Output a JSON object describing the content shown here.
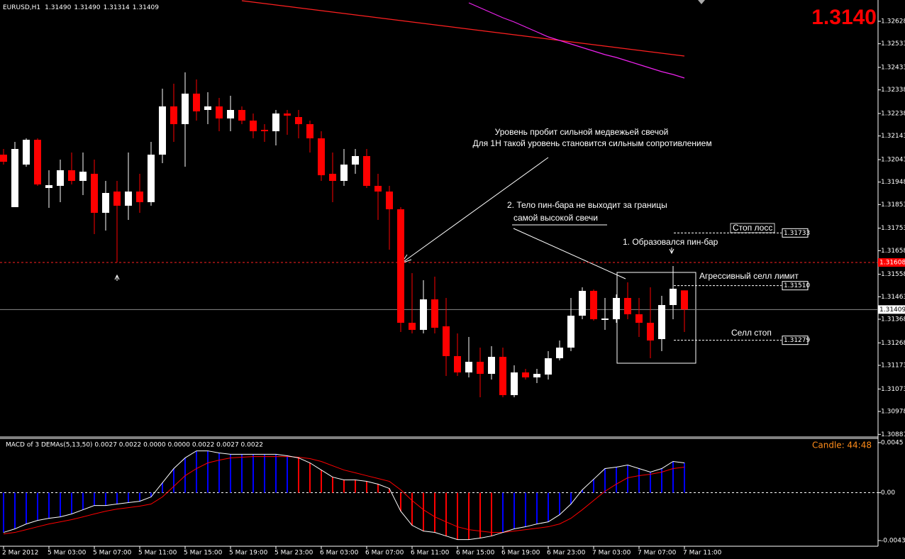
{
  "chart_data": [
    {
      "type": "candlestick",
      "symbol": "EURUSD,H1",
      "header_values": [
        "1.31490",
        "1.31490",
        "1.31314",
        "1.31409"
      ],
      "bid_display": "1.3140",
      "categories": [
        "2 Mar 2012",
        null,
        null,
        null,
        "5 Mar 03:00",
        null,
        null,
        null,
        "5 Mar 07:00",
        null,
        null,
        null,
        "5 Mar 11:00",
        null,
        null,
        null,
        "5 Mar 15:00",
        null,
        null,
        null,
        "5 Mar 19:00",
        null,
        null,
        null,
        "5 Mar 23:00",
        null,
        null,
        null,
        "6 Mar 03:00",
        null,
        null,
        null,
        "6 Mar 07:00",
        null,
        null,
        null,
        "6 Mar 11:00",
        null,
        null,
        null,
        "6 Mar 15:00",
        null,
        null,
        null,
        "6 Mar 19:00",
        null,
        null,
        null,
        "6 Mar 23:00",
        null,
        null,
        null,
        "7 Mar 03:00",
        null,
        null,
        null,
        "7 Mar 07:00",
        null,
        null,
        null,
        "7 Mar 11:00"
      ],
      "open": [
        1.32064,
        1.31842,
        1.32022,
        1.32127,
        1.31923,
        1.31932,
        1.31998,
        1.31953,
        1.31983,
        1.31818,
        1.31908,
        1.31848,
        1.31908,
        1.31863,
        1.32064,
        1.32268,
        1.32193,
        1.32322,
        1.32253,
        1.32268,
        1.32217,
        1.32253,
        1.32208,
        1.32169,
        1.32163,
        1.32238,
        1.32223,
        1.32193,
        1.32133,
        1.31983,
        1.31953,
        1.32022,
        1.32058,
        1.31932,
        1.31908,
        1.31833,
        1.31353,
        1.31323,
        1.31452,
        1.31338,
        1.31212,
        1.31143,
        1.31188,
        1.31137,
        1.31209,
        1.31047,
        1.31143,
        1.31122,
        1.31134,
        1.31203,
        1.31248,
        1.31383,
        1.31488,
        1.31365,
        1.31368,
        1.31458,
        1.31389,
        1.31353,
        1.31284,
        1.31428,
        1.3149
      ],
      "high": [
        1.32088,
        1.32118,
        1.32133,
        1.32133,
        1.31998,
        1.32043,
        1.32073,
        1.32073,
        1.32043,
        1.31953,
        1.31953,
        1.32073,
        1.31983,
        1.32118,
        1.32343,
        1.32364,
        1.32412,
        1.32382,
        1.32328,
        1.32304,
        1.32313,
        1.32268,
        1.32238,
        1.32193,
        1.32253,
        1.32253,
        1.32253,
        1.32208,
        1.32163,
        1.32073,
        1.32088,
        1.32088,
        1.32088,
        1.31983,
        1.31932,
        1.31842,
        1.31563,
        1.31533,
        1.31548,
        1.31458,
        1.31308,
        1.31293,
        1.31248,
        1.31254,
        1.31248,
        1.31173,
        1.31158,
        1.31158,
        1.31233,
        1.31278,
        1.31458,
        1.31503,
        1.31494,
        1.31458,
        1.31473,
        1.31524,
        1.31458,
        1.31503,
        1.31467,
        1.31593,
        1.3149
      ],
      "low": [
        1.32022,
        1.31842,
        1.32013,
        1.31932,
        1.31839,
        1.31863,
        1.31938,
        1.31893,
        1.31728,
        1.31743,
        1.31608,
        1.31788,
        1.31818,
        1.31848,
        1.32028,
        1.32118,
        1.32013,
        1.32208,
        1.32193,
        1.32163,
        1.32163,
        1.32193,
        1.32133,
        1.32118,
        1.32103,
        1.32148,
        1.32133,
        1.32073,
        1.31953,
        1.31863,
        1.31932,
        1.31983,
        1.31923,
        1.31788,
        1.31662,
        1.31314,
        1.31308,
        1.31308,
        1.31308,
        1.31128,
        1.31128,
        1.31122,
        1.31038,
        1.31113,
        1.31038,
        1.31038,
        1.31113,
        1.31098,
        1.31113,
        1.31194,
        1.31233,
        1.31368,
        1.31362,
        1.31323,
        1.31353,
        1.31368,
        1.31293,
        1.31203,
        1.31233,
        1.31368,
        1.31314
      ],
      "close": [
        1.32034,
        1.32088,
        1.32127,
        1.31938,
        1.31935,
        1.31998,
        1.31953,
        1.31992,
        1.31818,
        1.31902,
        1.31848,
        1.31908,
        1.31863,
        1.32064,
        1.32268,
        1.32193,
        1.32322,
        1.32247,
        1.32268,
        1.32217,
        1.32253,
        1.32208,
        1.32163,
        1.32163,
        1.32238,
        1.32229,
        1.32193,
        1.32133,
        1.31977,
        1.31953,
        1.32022,
        1.32058,
        1.31932,
        1.31908,
        1.31833,
        1.31353,
        1.31323,
        1.31452,
        1.31332,
        1.31212,
        1.31143,
        1.31188,
        1.31137,
        1.31209,
        1.31047,
        1.31143,
        1.31122,
        1.31137,
        1.31203,
        1.31248,
        1.31383,
        1.31488,
        1.31368,
        1.31371,
        1.31458,
        1.31389,
        1.31353,
        1.31278,
        1.31428,
        1.31497,
        1.31409
      ],
      "up_color": "#ffffff",
      "down_color": "#ff0000",
      "lines": [
        {
          "color": "#ff2020",
          "values": [
            null,
            null,
            null,
            null,
            null,
            null,
            null,
            null,
            null,
            null,
            null,
            null,
            null,
            null,
            null,
            null,
            null,
            null,
            null,
            null,
            null,
            1.32715,
            1.32709,
            1.32703,
            1.32697,
            1.32691,
            1.32685,
            1.32679,
            1.32673,
            1.32667,
            1.32661,
            1.32655,
            1.32649,
            1.32643,
            1.32637,
            1.32631,
            1.32625,
            1.32619,
            1.32613,
            1.32607,
            1.32601,
            1.32595,
            1.32589,
            1.32583,
            1.32577,
            1.32571,
            1.32565,
            1.32559,
            1.32553,
            1.32547,
            1.32541,
            1.32535,
            1.32529,
            1.32523,
            1.32517,
            1.32511,
            1.32505,
            1.32499,
            1.32493,
            1.32487,
            1.32481
          ]
        },
        {
          "color": "#ee22ee",
          "values": [
            null,
            null,
            null,
            null,
            null,
            null,
            null,
            null,
            null,
            null,
            null,
            null,
            null,
            null,
            null,
            null,
            null,
            null,
            null,
            null,
            null,
            null,
            null,
            null,
            null,
            null,
            null,
            null,
            null,
            null,
            null,
            null,
            null,
            null,
            null,
            null,
            null,
            null,
            null,
            null,
            null,
            1.32706,
            1.32685,
            1.32664,
            1.32643,
            1.32625,
            1.32604,
            1.32583,
            1.32562,
            1.32547,
            1.32532,
            1.32517,
            1.32502,
            1.32487,
            1.32475,
            1.3246,
            1.32445,
            1.3243,
            1.32415,
            1.32403,
            1.32388
          ]
        }
      ],
      "support_level": 1.31608,
      "bid": 1.31409,
      "levels": [
        1.31733,
        {
          "value": 1.3151,
          "label": "1.31510"
        },
        1.31279
      ],
      "annotations": [
        "Уровень пробит сильной медвежьей свечой",
        "Для 1H такой уровень становится сильным сопротивлением",
        "2. Тело пин-бара не выходит за границы",
        "самой высокой свечи",
        "1. Образовался пин-бар",
        "Стоп лосс",
        "Агрессивный селл лимит",
        "Селл стоп"
      ],
      "ylim": [
        1.30873,
        1.32718
      ],
      "yticks": [
        1.32628,
        1.32533,
        1.32433,
        1.32338,
        1.32238,
        1.32143,
        1.32043,
        1.31948,
        1.31853,
        1.31753,
        1.31658,
        1.31558,
        1.31463,
        1.31368,
        1.31268,
        1.31173,
        1.31073,
        1.30978,
        1.30881
      ]
    },
    {
      "type": "macd",
      "title": "MACD of 3 DEMAs(5,13,50) 0.0027 0.0022 0.0000 0.0000 0.0022 0.0027 0.0022",
      "timer_label": "Candle:",
      "timer_value": "44:48",
      "main": [
        -0.00357,
        -0.00325,
        -0.00281,
        -0.00249,
        -0.0023,
        -0.00217,
        -0.00191,
        -0.00153,
        -0.00115,
        -0.00115,
        -0.00102,
        -0.00089,
        -0.00077,
        -0.00038,
        0.00089,
        0.00217,
        0.00313,
        0.00376,
        0.00376,
        0.00357,
        0.00345,
        0.00345,
        0.00345,
        0.00345,
        0.00345,
        0.00332,
        0.00313,
        0.00268,
        0.00204,
        0.0014,
        0.00115,
        0.00115,
        0.00102,
        0.00077,
        0.00038,
        -0.00166,
        -0.00293,
        -0.00345,
        -0.00357,
        -0.00389,
        -0.00421,
        -0.00421,
        -0.00408,
        -0.00389,
        -0.00357,
        -0.00325,
        -0.00306,
        -0.00281,
        -0.00262,
        -0.00198,
        -0.00102,
        0.00026,
        0.00121,
        0.00217,
        0.0023,
        0.00249,
        0.00217,
        0.00185,
        0.00217,
        0.00281,
        0.00268
      ],
      "signal": [
        -0.0037,
        -0.00357,
        -0.00332,
        -0.00306,
        -0.00281,
        -0.00262,
        -0.00242,
        -0.00217,
        -0.00191,
        -0.00166,
        -0.00147,
        -0.00134,
        -0.00121,
        -0.00102,
        -0.00038,
        0.00057,
        0.00153,
        0.00217,
        0.00268,
        0.00293,
        0.00313,
        0.00319,
        0.00325,
        0.00325,
        0.00325,
        0.00325,
        0.00319,
        0.00306,
        0.00281,
        0.00242,
        0.00204,
        0.00179,
        0.00153,
        0.00128,
        0.00102,
        0.00026,
        -0.0007,
        -0.00153,
        -0.00217,
        -0.00262,
        -0.00306,
        -0.00332,
        -0.00345,
        -0.00357,
        -0.00357,
        -0.00345,
        -0.00332,
        -0.00319,
        -0.00306,
        -0.00281,
        -0.0023,
        -0.00153,
        -0.0007,
        0.00013,
        0.00077,
        0.00134,
        0.00153,
        0.00166,
        0.00185,
        0.00217,
        0.0023
      ],
      "main_color": "#ffffff",
      "signal_color": "#ff0000",
      "up_color": "#0000ff",
      "down_color": "#ff0000",
      "ylim": [
        -0.00481,
        0.00488
      ],
      "yticks": [
        0.0045,
        {
          "value": 0,
          "label": "0.00"
        },
        -0.0043
      ]
    }
  ]
}
